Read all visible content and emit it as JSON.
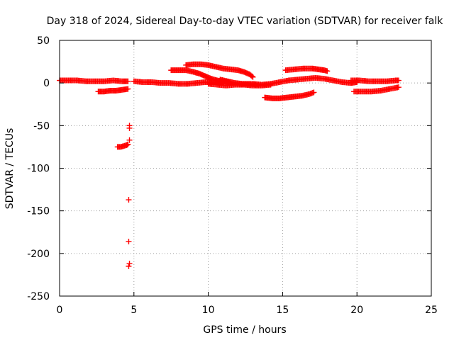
{
  "chart_data": {
    "type": "scatter",
    "title": "Day 318 of 2024, Sidereal Day-to-day VTEC variation (SDTVAR) for receiver falk",
    "xlabel": "GPS time / hours",
    "ylabel": "SDTVAR / TECUs",
    "xlim": [
      0,
      25
    ],
    "ylim": [
      -250,
      50
    ],
    "xticks": [
      0,
      5,
      10,
      15,
      20,
      25
    ],
    "yticks": [
      -250,
      -200,
      -150,
      -100,
      -50,
      0,
      50
    ],
    "xtick_labels": [
      "0",
      "5",
      "10",
      "15",
      "20",
      "25"
    ],
    "ytick_labels": [
      "-250",
      "-200",
      "-150",
      "-100",
      "-50",
      "0",
      "50"
    ],
    "grid": true,
    "color": "#ff0000",
    "marker": "plus",
    "series": [
      {
        "name": "s1",
        "points": [
          [
            0.0,
            3
          ],
          [
            0.6,
            3
          ],
          [
            1.2,
            3
          ],
          [
            1.8,
            2
          ],
          [
            2.4,
            2
          ],
          [
            3.0,
            2
          ],
          [
            3.6,
            3
          ],
          [
            4.2,
            2
          ],
          [
            4.6,
            2
          ]
        ]
      },
      {
        "name": "s2",
        "points": [
          [
            2.6,
            -10
          ],
          [
            3.0,
            -10
          ],
          [
            3.4,
            -9
          ],
          [
            3.8,
            -9
          ],
          [
            4.2,
            -8
          ],
          [
            4.6,
            -7
          ]
        ]
      },
      {
        "name": "s3",
        "points": [
          [
            5.0,
            2
          ],
          [
            5.6,
            1
          ],
          [
            6.2,
            1
          ],
          [
            6.8,
            0
          ],
          [
            7.4,
            0
          ],
          [
            8.0,
            -1
          ],
          [
            8.6,
            -1
          ],
          [
            9.2,
            0
          ],
          [
            9.8,
            1
          ],
          [
            10.4,
            1
          ],
          [
            11.0,
            1
          ]
        ]
      },
      {
        "name": "s4",
        "points": [
          [
            7.5,
            15
          ],
          [
            8.0,
            15
          ],
          [
            8.5,
            15
          ],
          [
            9.0,
            13
          ],
          [
            9.4,
            11
          ],
          [
            9.8,
            8
          ],
          [
            10.2,
            5
          ],
          [
            10.6,
            3
          ],
          [
            11.0,
            2
          ],
          [
            11.4,
            1
          ]
        ]
      },
      {
        "name": "s5",
        "points": [
          [
            8.5,
            21
          ],
          [
            9.0,
            22
          ],
          [
            9.5,
            22
          ],
          [
            10.0,
            21
          ],
          [
            10.5,
            19
          ],
          [
            11.0,
            17
          ],
          [
            11.5,
            16
          ],
          [
            12.0,
            15
          ],
          [
            12.4,
            13
          ],
          [
            12.8,
            10
          ],
          [
            13.0,
            7
          ]
        ]
      },
      {
        "name": "s6",
        "points": [
          [
            10.0,
            -1
          ],
          [
            10.6,
            -2
          ],
          [
            11.2,
            -3
          ],
          [
            11.8,
            -2
          ],
          [
            12.4,
            -2
          ],
          [
            13.0,
            -3
          ],
          [
            13.6,
            -3
          ],
          [
            14.2,
            -2
          ]
        ]
      },
      {
        "name": "s7",
        "points": [
          [
            10.8,
            4
          ],
          [
            11.3,
            2
          ],
          [
            11.8,
            0
          ],
          [
            12.3,
            -1
          ],
          [
            12.8,
            -1
          ],
          [
            13.2,
            -2
          ]
        ]
      },
      {
        "name": "s8",
        "points": [
          [
            13.8,
            -17
          ],
          [
            14.3,
            -18
          ],
          [
            14.8,
            -18
          ],
          [
            15.3,
            -17
          ],
          [
            15.8,
            -16
          ],
          [
            16.3,
            -15
          ],
          [
            16.8,
            -13
          ],
          [
            17.1,
            -11
          ]
        ]
      },
      {
        "name": "s9",
        "points": [
          [
            13.0,
            -1
          ],
          [
            13.6,
            -2
          ],
          [
            14.2,
            -1
          ],
          [
            14.8,
            1
          ],
          [
            15.4,
            3
          ],
          [
            16.0,
            4
          ],
          [
            16.6,
            5
          ],
          [
            17.2,
            6
          ],
          [
            17.8,
            5
          ],
          [
            18.4,
            3
          ],
          [
            19.0,
            1
          ],
          [
            19.6,
            0
          ],
          [
            20.0,
            1
          ]
        ]
      },
      {
        "name": "s10",
        "points": [
          [
            15.2,
            15
          ],
          [
            15.8,
            16
          ],
          [
            16.4,
            17
          ],
          [
            17.0,
            17
          ],
          [
            17.4,
            16
          ],
          [
            17.8,
            15
          ],
          [
            18.0,
            14
          ]
        ]
      },
      {
        "name": "s11",
        "points": [
          [
            19.6,
            3
          ],
          [
            20.2,
            3
          ],
          [
            20.8,
            2
          ],
          [
            21.4,
            2
          ],
          [
            22.0,
            2
          ],
          [
            22.6,
            3
          ],
          [
            22.8,
            3
          ]
        ]
      },
      {
        "name": "s12",
        "points": [
          [
            19.8,
            -10
          ],
          [
            20.4,
            -10
          ],
          [
            21.0,
            -10
          ],
          [
            21.6,
            -9
          ],
          [
            22.2,
            -7
          ],
          [
            22.8,
            -5
          ]
        ]
      },
      {
        "name": "s13",
        "points": [
          [
            3.9,
            -75
          ],
          [
            4.1,
            -75
          ],
          [
            4.3,
            -74
          ],
          [
            4.5,
            -73
          ],
          [
            4.6,
            -72
          ]
        ]
      },
      {
        "name": "outliers",
        "points": [
          [
            4.7,
            -50
          ],
          [
            4.7,
            -53
          ],
          [
            4.7,
            -67
          ],
          [
            4.65,
            -137
          ],
          [
            4.65,
            -186
          ],
          [
            4.7,
            -212
          ],
          [
            4.65,
            -215
          ]
        ]
      }
    ]
  }
}
